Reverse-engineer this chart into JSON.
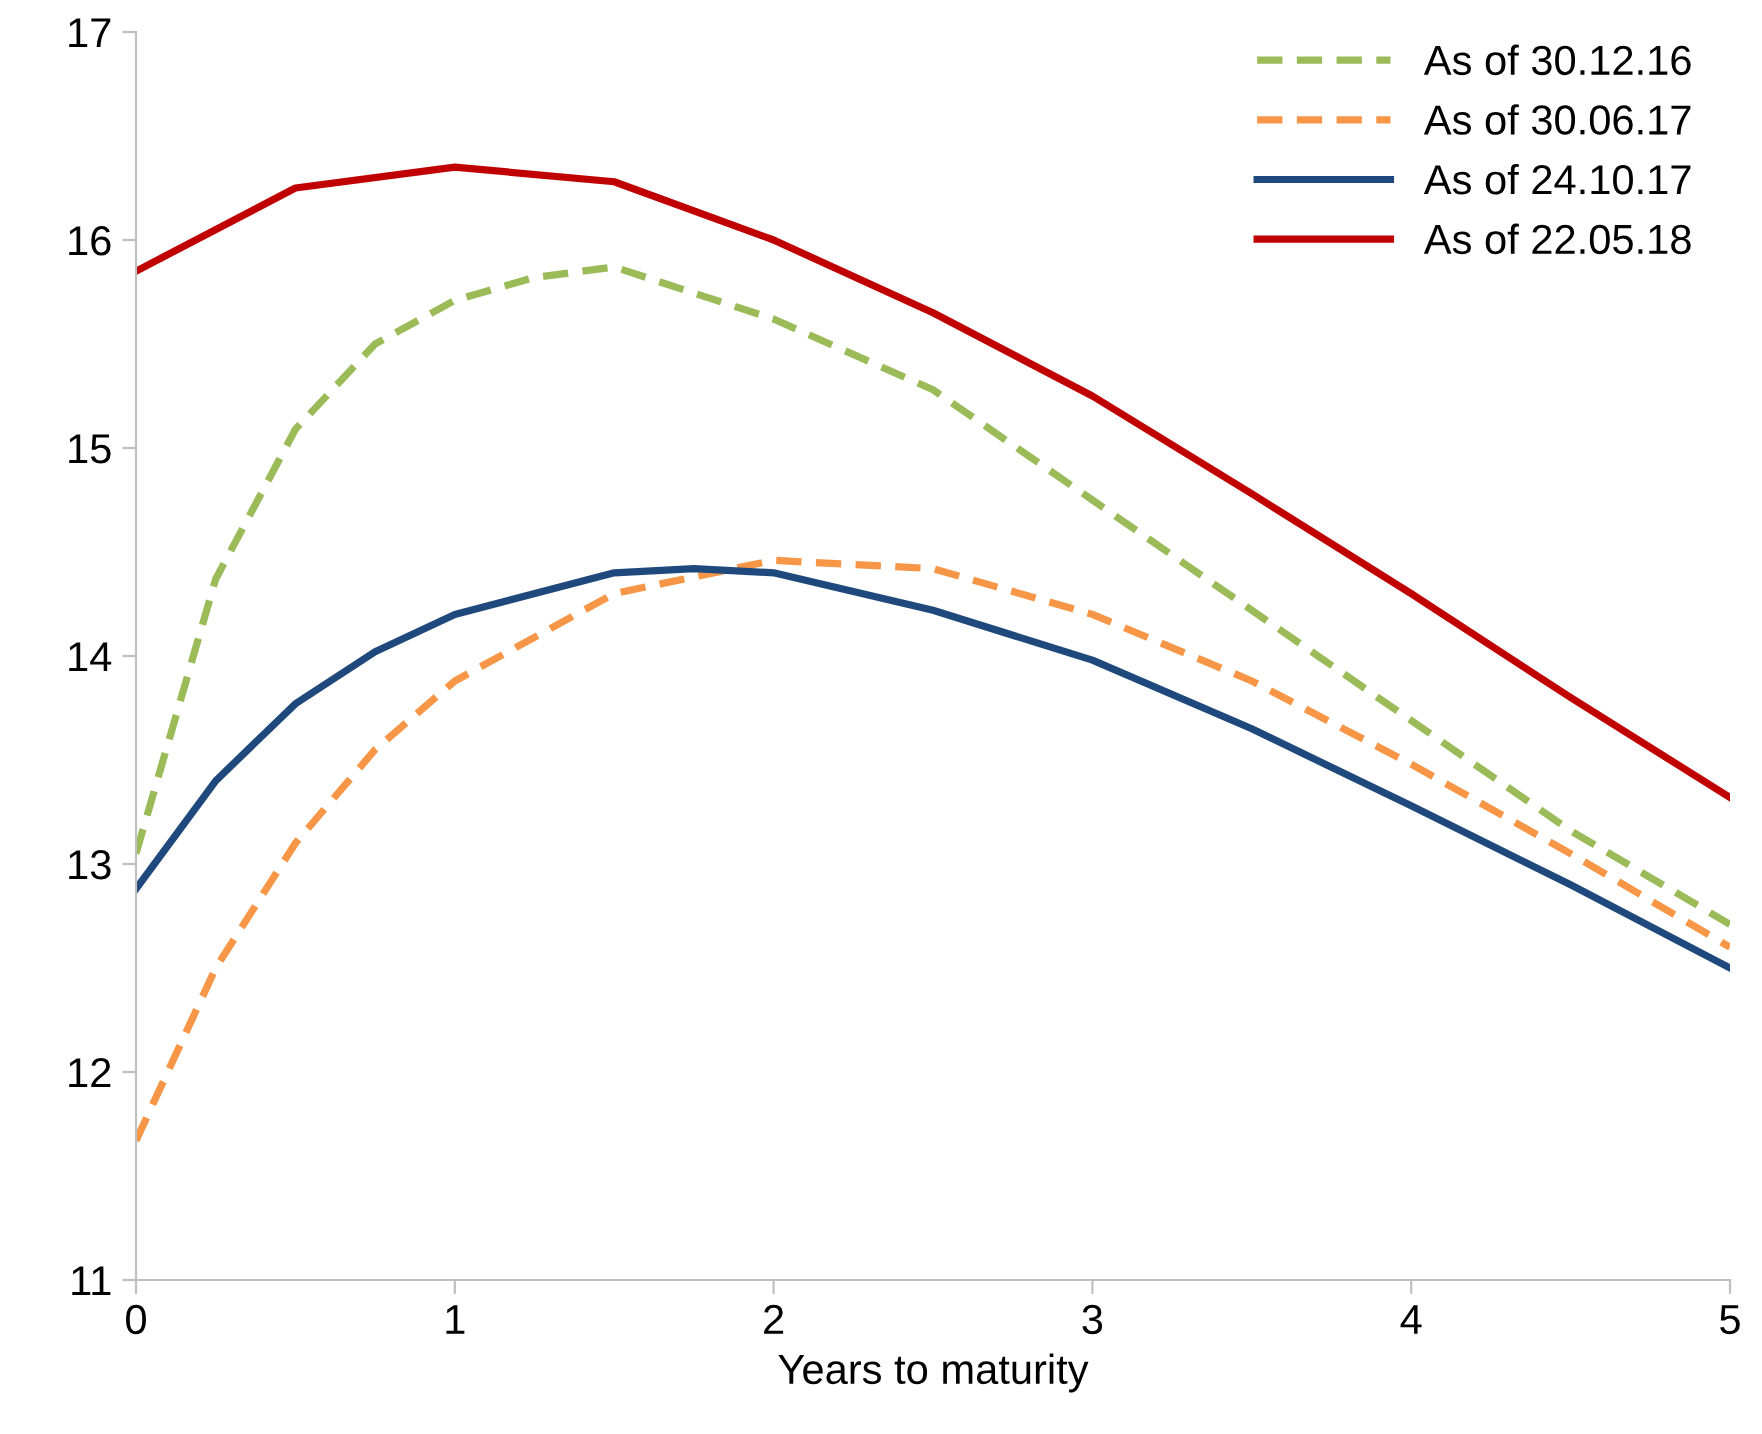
{
  "chart_data": {
    "type": "line",
    "xlabel": "Years to maturity",
    "xlim": [
      0,
      5
    ],
    "xticks": [
      0,
      1,
      2,
      3,
      4,
      5
    ],
    "ylim": [
      11,
      17
    ],
    "yticks": [
      11,
      12,
      13,
      14,
      15,
      16,
      17
    ],
    "grid": false,
    "legend": "top right",
    "marker": "none",
    "series": [
      {
        "name": "As of 30.12.16",
        "color": "#9bbb59",
        "line_style": "dashed",
        "x": [
          0,
          0.25,
          0.5,
          0.75,
          1,
          1.25,
          1.5,
          2,
          2.5,
          3,
          3.5,
          4,
          4.5,
          5
        ],
        "values": [
          13.05,
          14.37,
          15.09,
          15.5,
          15.71,
          15.82,
          15.87,
          15.62,
          15.28,
          14.75,
          14.22,
          13.69,
          13.16,
          12.71
        ]
      },
      {
        "name": "As of 30.06.17",
        "color": "#f79646",
        "line_style": "dashed",
        "x": [
          0,
          0.25,
          0.5,
          0.75,
          1,
          1.5,
          2,
          2.5,
          3,
          3.5,
          4,
          4.5,
          5
        ],
        "values": [
          11.67,
          12.5,
          13.1,
          13.55,
          13.88,
          14.3,
          14.46,
          14.42,
          14.2,
          13.88,
          13.48,
          13.05,
          12.6
        ]
      },
      {
        "name": "As of 24.10.17",
        "color": "#1f497d",
        "line_style": "solid",
        "x": [
          0,
          0.25,
          0.5,
          0.75,
          1,
          1.5,
          1.75,
          2,
          2.5,
          3,
          3.5,
          4,
          4.5,
          5
        ],
        "values": [
          12.88,
          13.4,
          13.77,
          14.02,
          14.2,
          14.4,
          14.42,
          14.4,
          14.22,
          13.98,
          13.65,
          13.28,
          12.9,
          12.5
        ]
      },
      {
        "name": "As of 22.05.18",
        "color": "#c00000",
        "line_style": "solid",
        "x": [
          0,
          0.5,
          1,
          1.5,
          2,
          2.5,
          3,
          3.5,
          4,
          4.5,
          5
        ],
        "values": [
          15.85,
          16.25,
          16.35,
          16.28,
          16.0,
          15.65,
          15.25,
          14.78,
          14.3,
          13.8,
          13.32
        ]
      }
    ]
  }
}
